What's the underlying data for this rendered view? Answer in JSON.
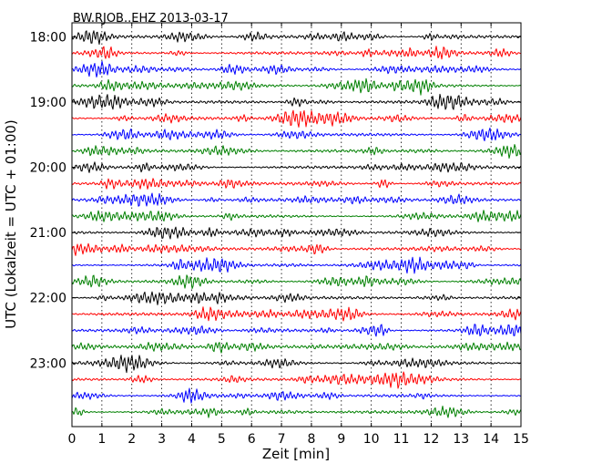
{
  "chart_data": {
    "type": "line",
    "title": "BW.RJOB..EHZ 2013-03-17",
    "xlabel": "Zeit  [min]",
    "ylabel": "UTC (Lokalzeit = UTC + 01:00)",
    "xlim": [
      0,
      15
    ],
    "x_ticks": [
      "0",
      "1",
      "2",
      "3",
      "4",
      "5",
      "6",
      "7",
      "8",
      "9",
      "10",
      "11",
      "12",
      "13",
      "14",
      "15"
    ],
    "y_tick_labels": [
      "18:00",
      "19:00",
      "20:00",
      "21:00",
      "22:00",
      "23:00"
    ],
    "grid": true,
    "trace_interval_minutes": 15,
    "start_time": "18:00",
    "trace_count": 24,
    "color_cycle": [
      "#000000",
      "#ff0000",
      "#0000ff",
      "#008000"
    ]
  }
}
